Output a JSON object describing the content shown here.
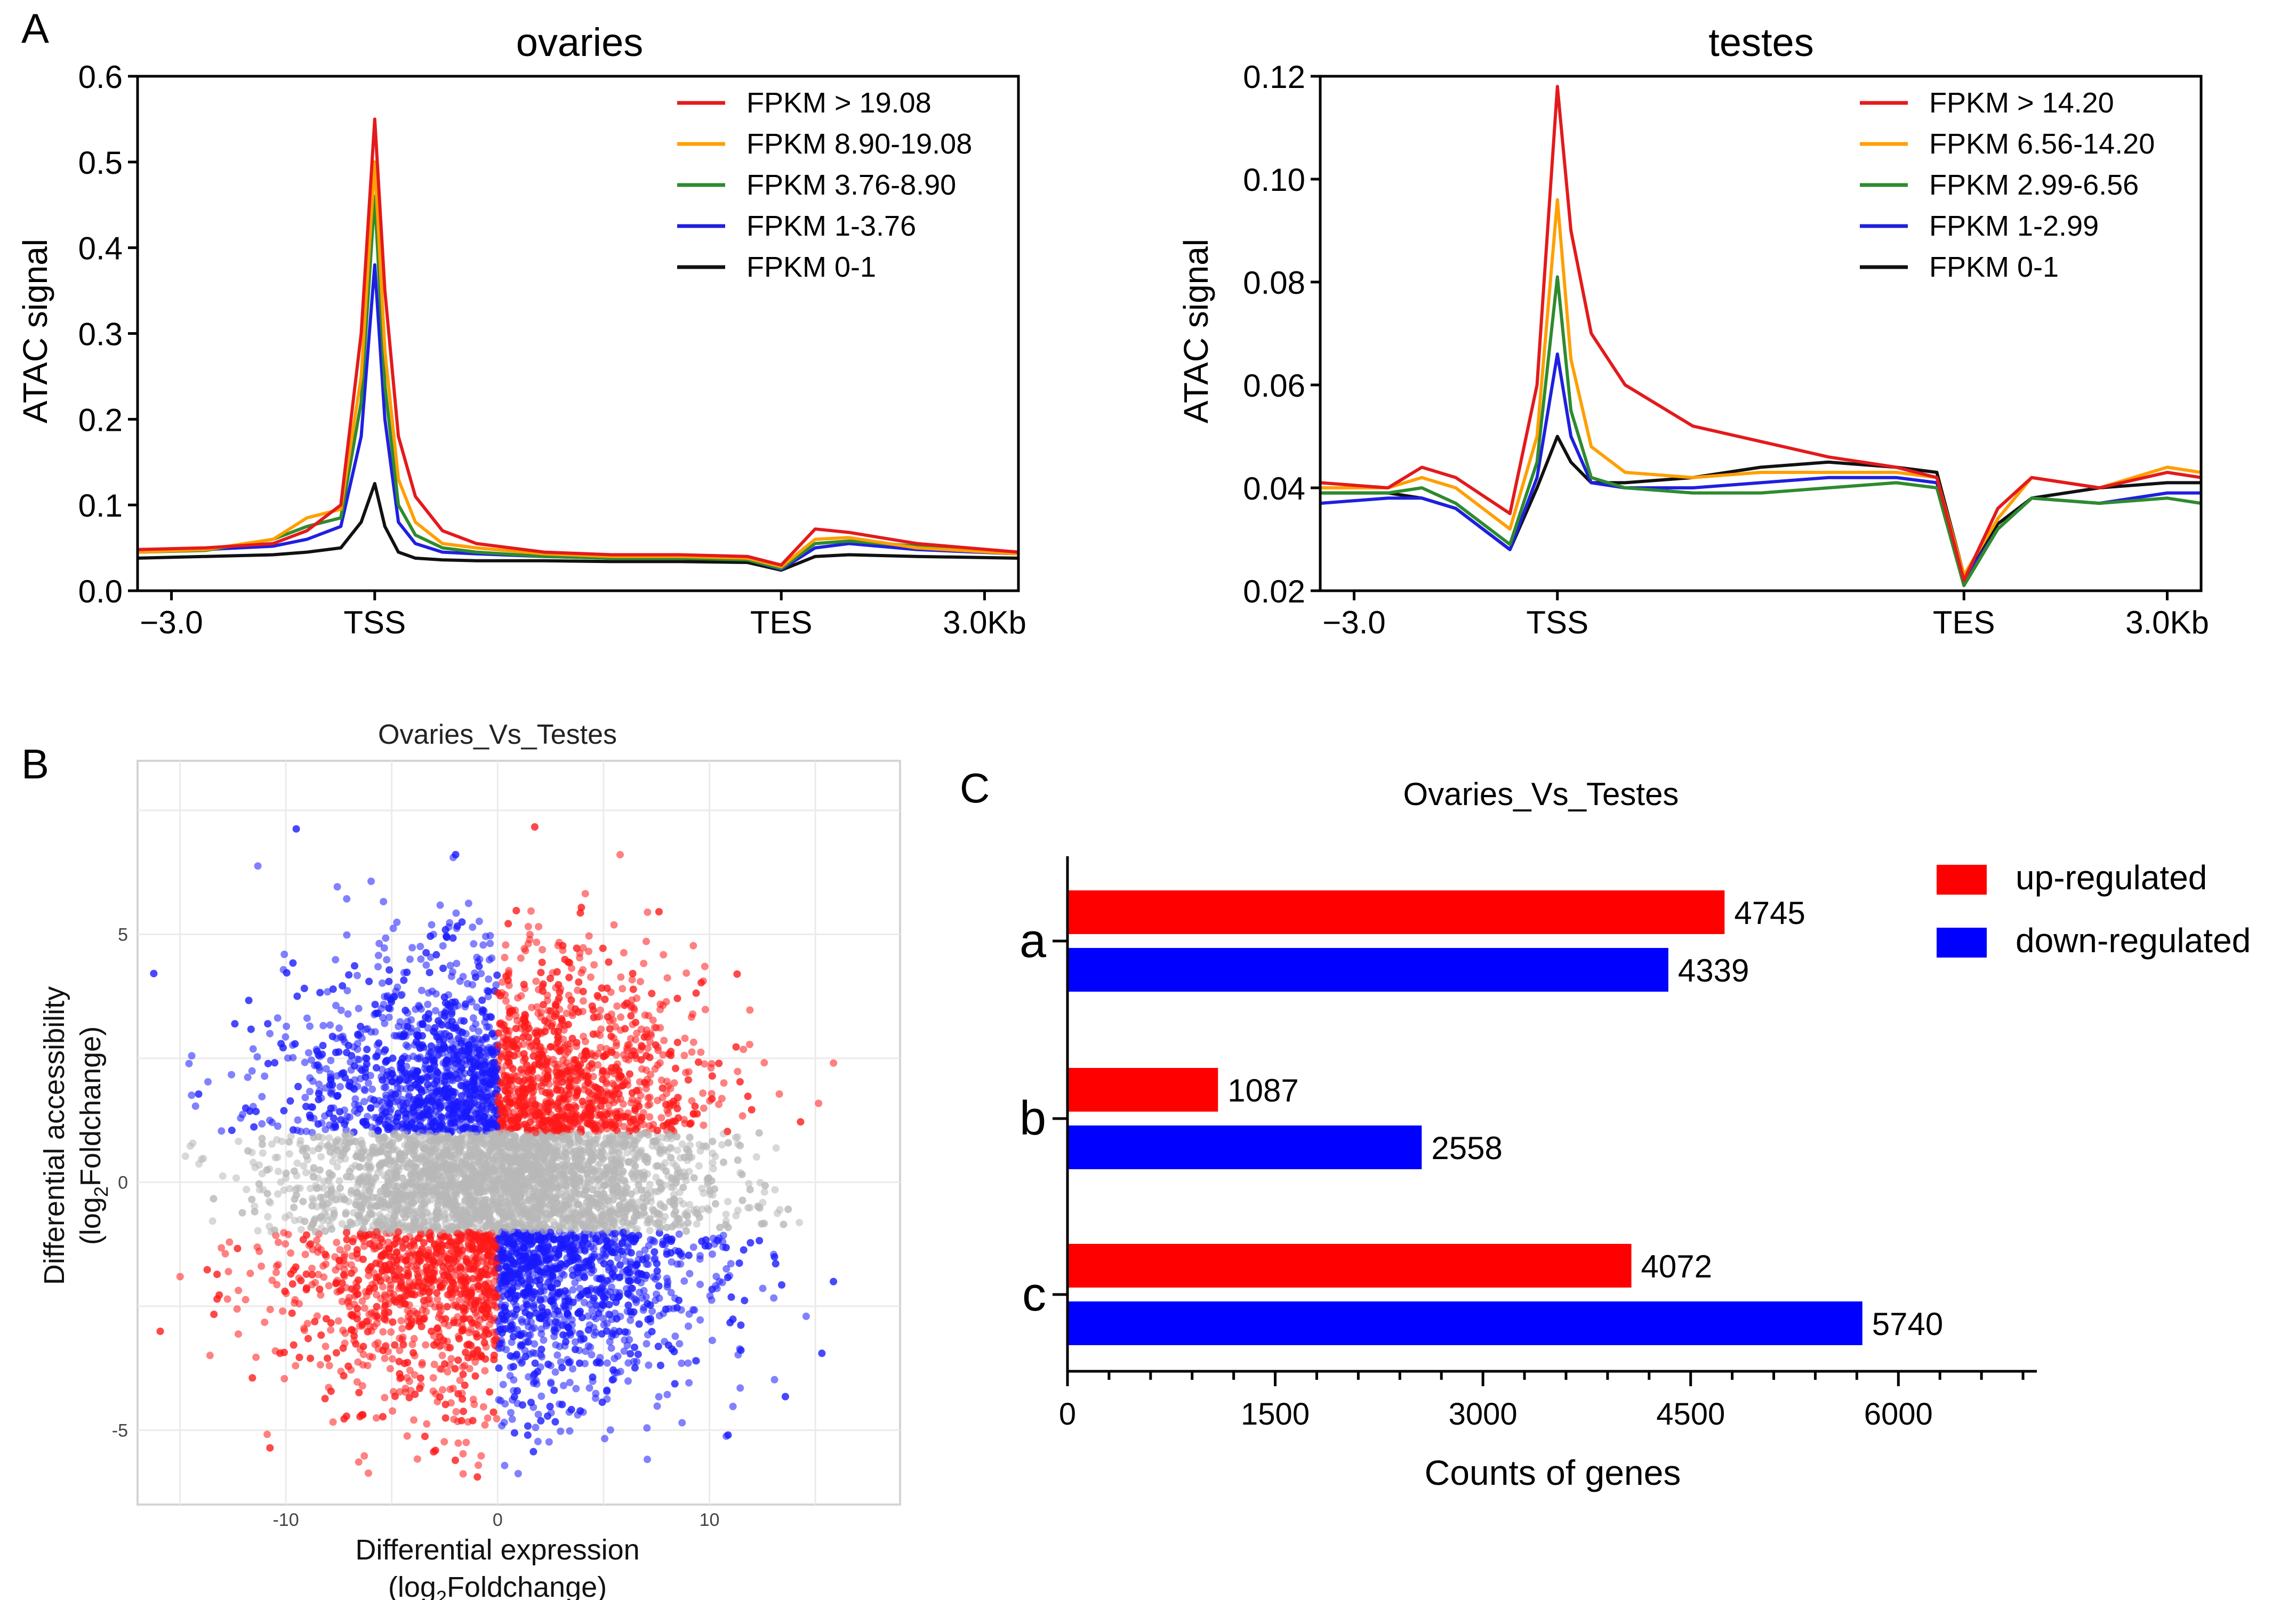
{
  "panel_labels": {
    "a": "A",
    "b": "B",
    "c": "C"
  },
  "chart_data": [
    {
      "id": "ovaries",
      "type": "line",
      "title": "ovaries",
      "ylabel": "ATAC signal",
      "xlabel": "",
      "x_ticks": [
        -3.0,
        0,
        6,
        9
      ],
      "x_tick_labels": [
        "−3.0",
        "TSS",
        "TES",
        "3.0Kb"
      ],
      "x_range": [
        -3.5,
        9.5
      ],
      "ylim": [
        0,
        0.6
      ],
      "y_ticks": [
        0,
        0.1,
        0.2,
        0.3,
        0.4,
        0.5,
        0.6
      ],
      "y_tick_labels": [
        "0.0",
        "0.1",
        "0.2",
        "0.3",
        "0.4",
        "0.5",
        "0.6"
      ],
      "legend_position": "top-right",
      "series": [
        {
          "name": "FPKM > 19.08",
          "color": "#e31a1c",
          "x": [
            -3.5,
            -2.5,
            -1.5,
            -1.0,
            -0.5,
            -0.2,
            0.0,
            0.15,
            0.35,
            0.6,
            1.0,
            1.5,
            2.5,
            3.5,
            4.5,
            5.5,
            6.0,
            6.5,
            7.0,
            8.0,
            9.5
          ],
          "y": [
            0.048,
            0.05,
            0.055,
            0.07,
            0.1,
            0.3,
            0.55,
            0.35,
            0.18,
            0.11,
            0.07,
            0.055,
            0.045,
            0.042,
            0.042,
            0.04,
            0.03,
            0.072,
            0.068,
            0.055,
            0.045
          ]
        },
        {
          "name": "FPKM 8.90-19.08",
          "color": "#ff9f00",
          "x": [
            -3.5,
            -2.5,
            -1.5,
            -1.0,
            -0.5,
            -0.2,
            0.0,
            0.15,
            0.35,
            0.6,
            1.0,
            1.5,
            2.5,
            3.5,
            4.5,
            5.5,
            6.0,
            6.5,
            7.0,
            8.0,
            9.5
          ],
          "y": [
            0.045,
            0.048,
            0.06,
            0.085,
            0.095,
            0.25,
            0.5,
            0.28,
            0.13,
            0.08,
            0.055,
            0.05,
            0.043,
            0.04,
            0.04,
            0.038,
            0.028,
            0.06,
            0.062,
            0.05,
            0.043
          ]
        },
        {
          "name": "FPKM 3.76-8.90",
          "color": "#2e8b2e",
          "x": [
            -3.5,
            -2.5,
            -1.5,
            -1.0,
            -0.5,
            -0.2,
            0.0,
            0.15,
            0.35,
            0.6,
            1.0,
            1.5,
            2.5,
            3.5,
            4.5,
            5.5,
            6.0,
            6.5,
            7.0,
            8.0,
            9.5
          ],
          "y": [
            0.045,
            0.047,
            0.06,
            0.075,
            0.085,
            0.22,
            0.46,
            0.24,
            0.1,
            0.065,
            0.05,
            0.045,
            0.04,
            0.038,
            0.038,
            0.036,
            0.026,
            0.055,
            0.058,
            0.052,
            0.045
          ]
        },
        {
          "name": "FPKM 1-3.76",
          "color": "#1f1fe0",
          "x": [
            -3.5,
            -2.5,
            -1.5,
            -1.0,
            -0.5,
            -0.2,
            0.0,
            0.15,
            0.35,
            0.6,
            1.0,
            1.5,
            2.5,
            3.5,
            4.5,
            5.5,
            6.0,
            6.5,
            7.0,
            8.0,
            9.5
          ],
          "y": [
            0.045,
            0.048,
            0.052,
            0.06,
            0.075,
            0.18,
            0.38,
            0.2,
            0.08,
            0.055,
            0.045,
            0.043,
            0.04,
            0.038,
            0.038,
            0.036,
            0.025,
            0.05,
            0.055,
            0.048,
            0.043
          ]
        },
        {
          "name": "FPKM 0-1",
          "color": "#111111",
          "x": [
            -3.5,
            -2.5,
            -1.5,
            -1.0,
            -0.5,
            -0.2,
            0.0,
            0.15,
            0.35,
            0.6,
            1.0,
            1.5,
            2.5,
            3.5,
            4.5,
            5.5,
            6.0,
            6.5,
            7.0,
            8.0,
            9.5
          ],
          "y": [
            0.038,
            0.04,
            0.042,
            0.045,
            0.05,
            0.08,
            0.125,
            0.075,
            0.045,
            0.038,
            0.036,
            0.035,
            0.035,
            0.034,
            0.034,
            0.033,
            0.024,
            0.04,
            0.042,
            0.04,
            0.038
          ]
        }
      ]
    },
    {
      "id": "testes",
      "type": "line",
      "title": "testes",
      "ylabel": "ATAC signal",
      "xlabel": "",
      "x_ticks": [
        -3.0,
        0,
        6,
        9
      ],
      "x_tick_labels": [
        "−3.0",
        "TSS",
        "TES",
        "3.0Kb"
      ],
      "x_range": [
        -3.5,
        9.5
      ],
      "ylim": [
        0.02,
        0.12
      ],
      "y_ticks": [
        0.02,
        0.04,
        0.06,
        0.08,
        0.1,
        0.12
      ],
      "y_tick_labels": [
        "0.02",
        "0.04",
        "0.06",
        "0.08",
        "0.10",
        "0.12"
      ],
      "legend_position": "top-right",
      "series": [
        {
          "name": "FPKM > 14.20",
          "color": "#e31a1c",
          "x": [
            -3.5,
            -2.5,
            -2.0,
            -1.5,
            -0.7,
            -0.3,
            0.0,
            0.2,
            0.5,
            1.0,
            2.0,
            3.0,
            4.0,
            5.0,
            5.6,
            6.0,
            6.5,
            7.0,
            8.0,
            9.0,
            9.5
          ],
          "y": [
            0.041,
            0.04,
            0.044,
            0.042,
            0.035,
            0.06,
            0.118,
            0.09,
            0.07,
            0.06,
            0.052,
            0.049,
            0.046,
            0.044,
            0.042,
            0.022,
            0.036,
            0.042,
            0.04,
            0.043,
            0.042
          ]
        },
        {
          "name": "FPKM 6.56-14.20",
          "color": "#ff9f00",
          "x": [
            -3.5,
            -2.5,
            -2.0,
            -1.5,
            -0.7,
            -0.3,
            0.0,
            0.2,
            0.5,
            1.0,
            2.0,
            3.0,
            4.0,
            5.0,
            5.6,
            6.0,
            6.5,
            7.0,
            8.0,
            9.0,
            9.5
          ],
          "y": [
            0.04,
            0.04,
            0.042,
            0.04,
            0.032,
            0.05,
            0.096,
            0.065,
            0.048,
            0.043,
            0.042,
            0.043,
            0.043,
            0.043,
            0.042,
            0.023,
            0.034,
            0.042,
            0.04,
            0.044,
            0.043
          ]
        },
        {
          "name": "FPKM 2.99-6.56",
          "color": "#2e8b2e",
          "x": [
            -3.5,
            -2.5,
            -2.0,
            -1.5,
            -0.7,
            -0.3,
            0.0,
            0.2,
            0.5,
            1.0,
            2.0,
            3.0,
            4.0,
            5.0,
            5.6,
            6.0,
            6.5,
            7.0,
            8.0,
            9.0,
            9.5
          ],
          "y": [
            0.039,
            0.039,
            0.04,
            0.037,
            0.029,
            0.045,
            0.081,
            0.055,
            0.042,
            0.04,
            0.039,
            0.039,
            0.04,
            0.041,
            0.04,
            0.021,
            0.032,
            0.038,
            0.037,
            0.038,
            0.037
          ]
        },
        {
          "name": "FPKM 1-2.99",
          "color": "#1f1fe0",
          "x": [
            -3.5,
            -2.5,
            -2.0,
            -1.5,
            -0.7,
            -0.3,
            0.0,
            0.2,
            0.5,
            1.0,
            2.0,
            3.0,
            4.0,
            5.0,
            5.6,
            6.0,
            6.5,
            7.0,
            8.0,
            9.0,
            9.5
          ],
          "y": [
            0.037,
            0.038,
            0.038,
            0.036,
            0.028,
            0.042,
            0.066,
            0.05,
            0.041,
            0.04,
            0.04,
            0.041,
            0.042,
            0.042,
            0.041,
            0.022,
            0.032,
            0.038,
            0.037,
            0.039,
            0.039
          ]
        },
        {
          "name": "FPKM 0-1",
          "color": "#111111",
          "x": [
            -3.5,
            -2.5,
            -2.0,
            -1.5,
            -0.7,
            -0.3,
            0.0,
            0.2,
            0.5,
            1.0,
            2.0,
            3.0,
            4.0,
            5.0,
            5.6,
            6.0,
            6.5,
            7.0,
            8.0,
            9.0,
            9.5
          ],
          "y": [
            0.039,
            0.039,
            0.038,
            0.036,
            0.028,
            0.04,
            0.05,
            0.045,
            0.041,
            0.041,
            0.042,
            0.044,
            0.045,
            0.044,
            0.043,
            0.023,
            0.033,
            0.038,
            0.04,
            0.041,
            0.041
          ]
        }
      ]
    },
    {
      "id": "scatter",
      "type": "scatter",
      "title": "Ovaries_Vs_Testes",
      "xlabel_line1": "Differential expression",
      "xlabel_line2_pre": "(log",
      "xlabel_line2_sub": "2",
      "xlabel_line2_post": "Foldchange)",
      "ylabel_line1": "Differential accessibility",
      "ylabel_line2_pre": "(log",
      "ylabel_line2_sub": "2",
      "ylabel_line2_post": "Foldchange)",
      "xlim": [
        -17,
        19
      ],
      "ylim": [
        -6.5,
        8.5
      ],
      "x_ticks": [
        -10,
        0,
        10
      ],
      "x_tick_labels": [
        "-10",
        "0",
        "10"
      ],
      "y_ticks": [
        -5,
        0,
        5
      ],
      "y_tick_labels": [
        "-5",
        "0",
        "5"
      ],
      "threshold_y": 1,
      "colors": {
        "up": "#ff1a1a",
        "down": "#1a1aff",
        "neutral": "#b8b8b8"
      },
      "description_groups": [
        {
          "name": "x>0, y>1",
          "color": "red"
        },
        {
          "name": "x<0, y>1",
          "color": "blue"
        },
        {
          "name": "x<0, y<-1",
          "color": "red"
        },
        {
          "name": "x>0, y<-1",
          "color": "blue"
        },
        {
          "name": "|y|<=1",
          "color": "grey"
        }
      ]
    },
    {
      "id": "bars",
      "type": "bar",
      "orientation": "horizontal",
      "title": "Ovaries_Vs_Testes",
      "xlabel": "Counts of genes",
      "ylabel": "",
      "categories": [
        "a",
        "b",
        "c"
      ],
      "xlim": [
        0,
        7000
      ],
      "x_ticks": [
        0,
        1500,
        3000,
        4500,
        6000
      ],
      "x_tick_labels": [
        "0",
        "1500",
        "3000",
        "4500",
        "6000"
      ],
      "legend_position": "top-right",
      "series": [
        {
          "name": "up-regulated",
          "color": "#ff0000",
          "values": [
            4745,
            1087,
            4072
          ]
        },
        {
          "name": "down-regulated",
          "color": "#0000ff",
          "values": [
            4339,
            2558,
            5740
          ]
        }
      ]
    }
  ]
}
